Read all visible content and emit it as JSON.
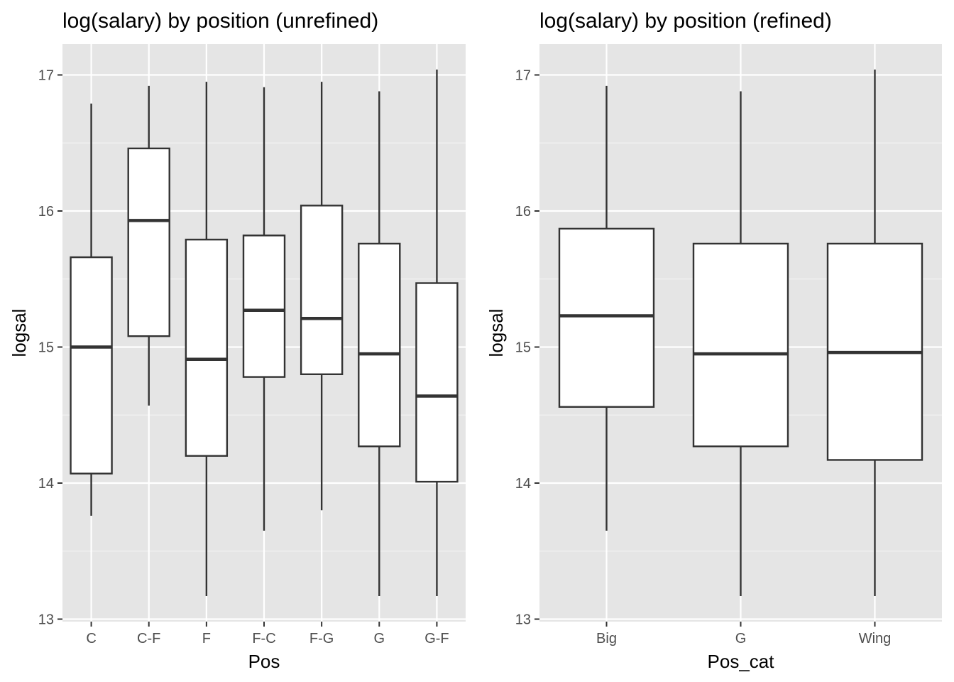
{
  "chart_data": [
    {
      "type": "boxplot",
      "title": "log(salary) by position (unrefined)",
      "xlabel": "Pos",
      "ylabel": "logsal",
      "ylim": [
        13,
        17.2
      ],
      "yticks": [
        13,
        14,
        15,
        16,
        17
      ],
      "grid": true,
      "categories": [
        "C",
        "C-F",
        "F",
        "F-C",
        "F-G",
        "G",
        "G-F"
      ],
      "boxes": [
        {
          "category": "C",
          "whisker_low": 13.76,
          "q1": 14.07,
          "median": 15.0,
          "q3": 15.66,
          "whisker_high": 16.79
        },
        {
          "category": "C-F",
          "whisker_low": 14.57,
          "q1": 15.08,
          "median": 15.93,
          "q3": 16.46,
          "whisker_high": 16.92
        },
        {
          "category": "F",
          "whisker_low": 13.17,
          "q1": 14.2,
          "median": 14.91,
          "q3": 15.79,
          "whisker_high": 16.95
        },
        {
          "category": "F-C",
          "whisker_low": 13.65,
          "q1": 14.78,
          "median": 15.27,
          "q3": 15.82,
          "whisker_high": 16.91
        },
        {
          "category": "F-G",
          "whisker_low": 13.8,
          "q1": 14.8,
          "median": 15.21,
          "q3": 16.04,
          "whisker_high": 16.95
        },
        {
          "category": "G",
          "whisker_low": 13.17,
          "q1": 14.27,
          "median": 14.95,
          "q3": 15.76,
          "whisker_high": 16.88
        },
        {
          "category": "G-F",
          "whisker_low": 13.17,
          "q1": 14.01,
          "median": 14.64,
          "q3": 15.47,
          "whisker_high": 17.04
        }
      ]
    },
    {
      "type": "boxplot",
      "title": "log(salary) by position (refined)",
      "xlabel": "Pos_cat",
      "ylabel": "logsal",
      "ylim": [
        13,
        17.2
      ],
      "yticks": [
        13,
        14,
        15,
        16,
        17
      ],
      "grid": true,
      "categories": [
        "Big",
        "G",
        "Wing"
      ],
      "boxes": [
        {
          "category": "Big",
          "whisker_low": 13.65,
          "q1": 14.56,
          "median": 15.23,
          "q3": 15.87,
          "whisker_high": 16.92
        },
        {
          "category": "G",
          "whisker_low": 13.17,
          "q1": 14.27,
          "median": 14.95,
          "q3": 15.76,
          "whisker_high": 16.88
        },
        {
          "category": "Wing",
          "whisker_low": 13.17,
          "q1": 14.17,
          "median": 14.96,
          "q3": 15.76,
          "whisker_high": 17.04
        }
      ]
    }
  ]
}
